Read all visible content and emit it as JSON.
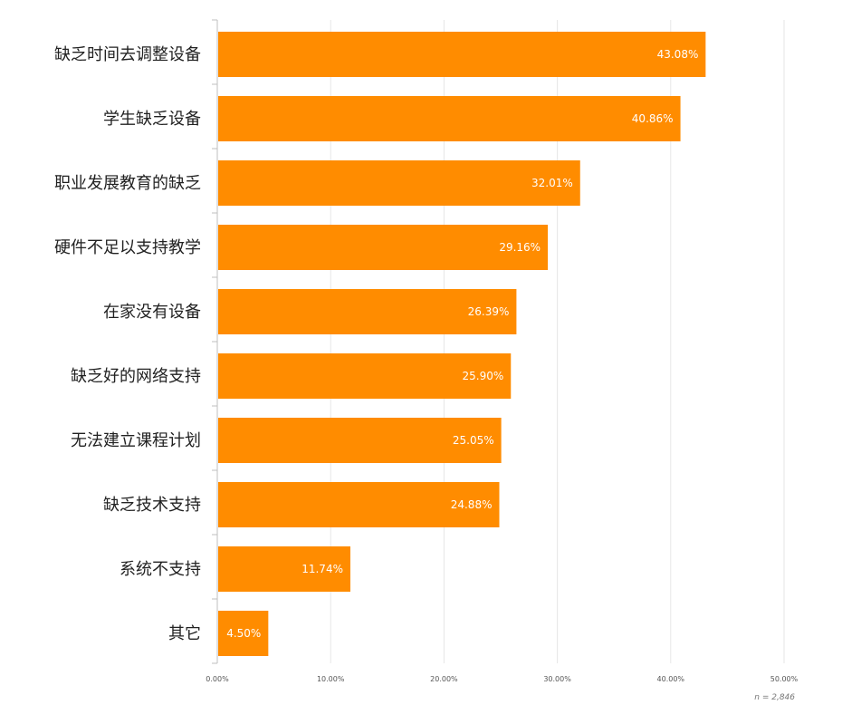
{
  "chart_data": {
    "type": "bar",
    "orientation": "horizontal",
    "categories": [
      "缺乏时间去调整设备",
      "学生缺乏设备",
      "职业发展教育的缺乏",
      "硬件不足以支持教学",
      "在家没有设备",
      "缺乏好的网络支持",
      "无法建立课程计划",
      "缺乏技术支持",
      "系统不支持",
      "其它"
    ],
    "values": [
      43.08,
      40.86,
      32.01,
      29.16,
      26.39,
      25.9,
      25.05,
      24.88,
      11.74,
      4.5
    ],
    "value_labels": [
      "43.08%",
      "40.86%",
      "32.01%",
      "29.16%",
      "26.39%",
      "25.90%",
      "25.05%",
      "24.88%",
      "11.74%",
      "4.50%"
    ],
    "xticks": [
      0,
      10,
      20,
      30,
      40,
      50
    ],
    "xtick_labels": [
      "0.00%",
      "10.00%",
      "20.00%",
      "30.00%",
      "40.00%",
      "50.00%"
    ],
    "xlim": [
      0,
      50
    ],
    "grid": true,
    "legend": "none",
    "bar_color": "#ff8c00",
    "grid_color": "#e6e6e6",
    "axis_color": "#bfbfbf",
    "sample_size_label": "n = 2,846"
  }
}
